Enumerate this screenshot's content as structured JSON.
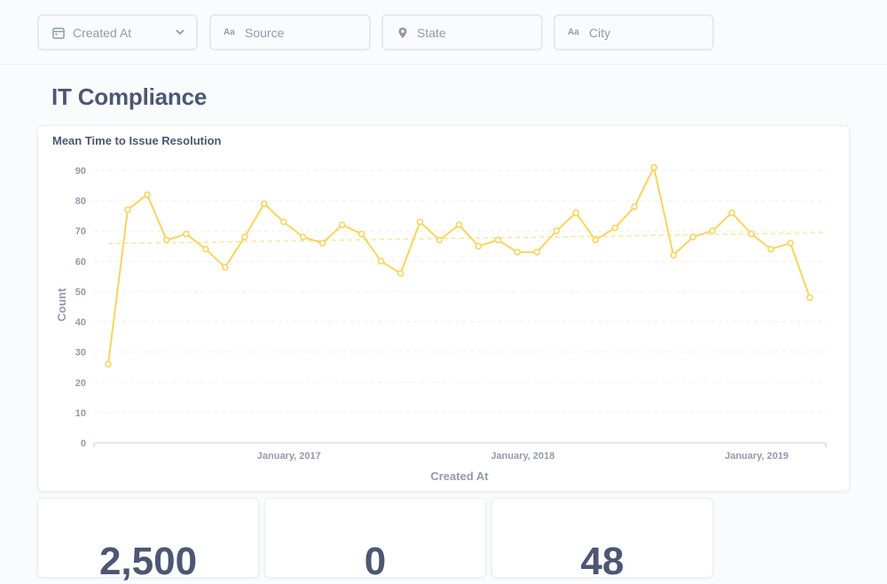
{
  "filters": [
    {
      "id": "created",
      "label": "Created At",
      "icon": "calendar-icon"
    },
    {
      "id": "source",
      "label": "Source",
      "icon": "text-aa-icon"
    },
    {
      "id": "state",
      "label": "State",
      "icon": "location-pin-icon"
    },
    {
      "id": "city",
      "label": "City",
      "icon": "text-aa-icon"
    }
  ],
  "filter_icon_text": "Aa",
  "page_title": "IT Compliance",
  "chart_card": {
    "title": "Mean Time to Issue Resolution"
  },
  "colors": {
    "series": "#f9d45c",
    "grid": "#eceff3",
    "text": "#4c5773",
    "muted": "#949aab"
  },
  "chart_data": {
    "type": "line",
    "title": "Mean Time to Issue Resolution",
    "xlabel": "Created At",
    "ylabel": "Count",
    "ylim": [
      0,
      90
    ],
    "yticks": [
      0,
      10,
      20,
      30,
      40,
      50,
      60,
      70,
      80,
      90
    ],
    "xtick_labels": [
      "January, 2017",
      "January, 2018",
      "January, 2019"
    ],
    "xtick_indices": [
      9,
      21,
      33
    ],
    "grid": true,
    "trendline": {
      "start": 65.8,
      "end": 69.4
    },
    "series": [
      {
        "values": [
          26,
          77,
          82,
          67,
          69,
          64,
          58,
          68,
          79,
          73,
          68,
          66,
          72,
          69,
          60,
          56,
          73,
          67,
          72,
          65,
          67,
          63,
          63,
          70,
          76,
          67,
          71,
          78,
          91,
          62,
          68,
          70,
          76,
          69,
          64,
          66,
          48
        ]
      }
    ]
  },
  "kpis": [
    {
      "value": "2,500"
    },
    {
      "value": "0"
    },
    {
      "value": "48"
    }
  ]
}
